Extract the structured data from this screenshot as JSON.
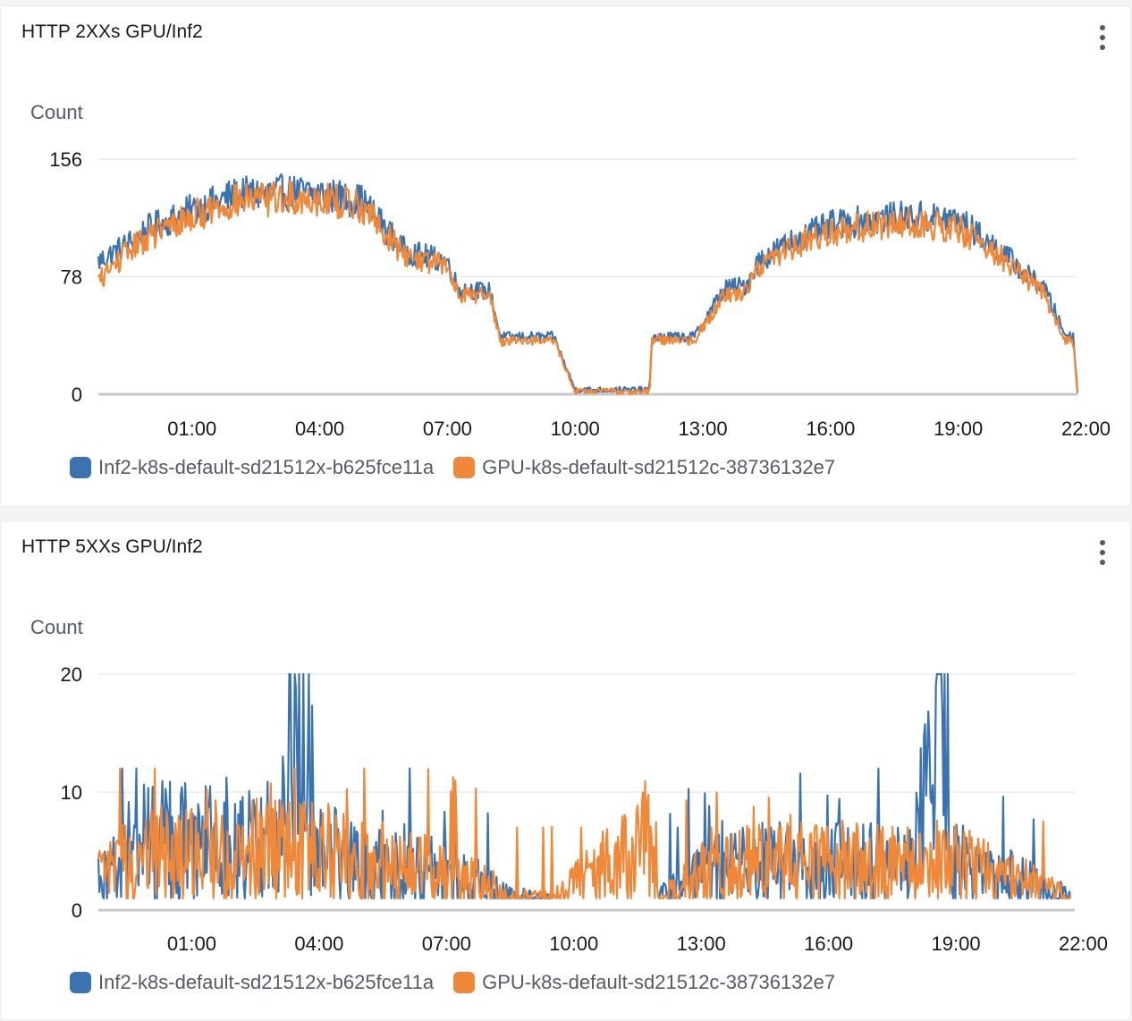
{
  "colors": {
    "inf2": "#3b73b0",
    "gpu": "#f0883a",
    "grid": "#e9ebed",
    "baseline": "#c6c6cd"
  },
  "menu_icon": "vertical-ellipsis-icon",
  "chart_data": [
    {
      "type": "line",
      "title": "HTTP 2XXs GPU/Inf2",
      "ylabel": "Count",
      "xlabel": "",
      "x_ticks": [
        "01:00",
        "04:00",
        "07:00",
        "10:00",
        "13:00",
        "16:00",
        "19:00",
        "22:00"
      ],
      "x_range_hours": [
        -1.2,
        21.8
      ],
      "ylim": [
        0,
        156
      ],
      "y_ticks": [
        "0",
        "78",
        "156"
      ],
      "grid": true,
      "legend": "bottom-left",
      "x_hours": [
        -1.2,
        -0.5,
        0.0,
        1.0,
        2.0,
        3.0,
        4.0,
        5.0,
        6.0,
        7.0,
        7.25,
        8.0,
        8.25,
        8.5,
        9.5,
        10.0,
        11.0,
        11.75,
        11.8,
        12.5,
        12.8,
        13.5,
        14.0,
        14.3,
        15.0,
        16.0,
        17.0,
        18.0,
        19.0,
        19.5,
        20.0,
        20.8,
        21.0,
        21.5,
        21.7,
        21.8
      ],
      "series": [
        {
          "name": "Inf2-k8s-default-sd21512x-b625fce11a",
          "values": [
            88,
            100,
            110,
            122,
            132,
            134,
            133,
            128,
            95,
            88,
            70,
            68,
            38,
            38,
            38,
            3,
            3,
            3,
            38,
            38,
            38,
            70,
            72,
            88,
            100,
            112,
            116,
            118,
            116,
            105,
            95,
            75,
            72,
            40,
            38,
            3
          ]
        },
        {
          "name": "GPU-k8s-default-sd21512c-38736132e7",
          "values": [
            75,
            95,
            105,
            118,
            128,
            130,
            130,
            125,
            92,
            85,
            67,
            65,
            35,
            36,
            36,
            2,
            2,
            2,
            36,
            36,
            36,
            66,
            68,
            85,
            97,
            108,
            112,
            114,
            110,
            100,
            91,
            72,
            68,
            36,
            35,
            2
          ]
        }
      ]
    },
    {
      "type": "line",
      "title": "HTTP 5XXs GPU/Inf2",
      "ylabel": "Count",
      "xlabel": "",
      "x_ticks": [
        "01:00",
        "04:00",
        "07:00",
        "10:00",
        "13:00",
        "16:00",
        "19:00",
        "22:00"
      ],
      "x_range_hours": [
        -1.2,
        21.8
      ],
      "ylim": [
        0,
        20
      ],
      "y_ticks": [
        "0",
        "10",
        "20"
      ],
      "grid": true,
      "legend": "bottom-left",
      "x_hours": [
        -1.2,
        -0.5,
        0.0,
        1.0,
        2.0,
        3.0,
        3.5,
        4.0,
        5.0,
        6.0,
        7.0,
        8.0,
        8.5,
        9.0,
        9.5,
        11.75,
        12.0,
        12.5,
        13.0,
        14.0,
        15.0,
        16.0,
        17.0,
        18.0,
        18.8,
        18.85,
        19.0,
        20.0,
        21.0,
        21.7
      ],
      "series": [
        {
          "name": "Inf2-k8s-default-sd21512x-b625fce11a",
          "values": [
            3,
            5,
            6,
            6,
            5,
            6,
            18,
            5,
            4,
            4,
            3,
            2,
            1,
            1,
            1,
            null,
            1,
            2,
            3,
            4,
            4,
            4,
            4,
            4,
            20,
            5,
            4,
            3,
            2,
            1
          ]
        },
        {
          "name": "GPU-k8s-default-sd21512c-38736132e7",
          "values": [
            3,
            4,
            5,
            5,
            5,
            5,
            5,
            5,
            4,
            4,
            3,
            2,
            1,
            1,
            1,
            6,
            1,
            2,
            3,
            4,
            4,
            4,
            4,
            4,
            4,
            4,
            4,
            3,
            2,
            1
          ]
        }
      ]
    }
  ]
}
